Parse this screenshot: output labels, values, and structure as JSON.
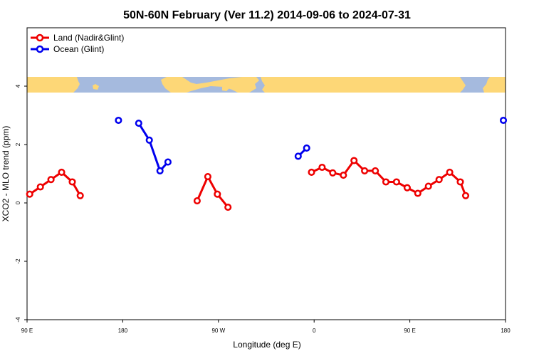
{
  "chart_data": {
    "type": "line",
    "title": "50N-60N February (Ver 11.2)   2014-09-06 to 2024-07-31",
    "xlabel": "Longitude (deg E)",
    "ylabel": "XCO2 - MLO trend (ppm)",
    "x_ticks": [
      {
        "label": "90 E",
        "pos": 90
      },
      {
        "label": "180",
        "pos": 180
      },
      {
        "label": "90 W",
        "pos": 270
      },
      {
        "label": "0",
        "pos": 360
      },
      {
        "label": "90 E",
        "pos": 450
      },
      {
        "label": "180",
        "pos": 540
      }
    ],
    "y_ticks": [
      -4,
      -2,
      0,
      2,
      4
    ],
    "xlim": [
      90,
      540
    ],
    "ylim": [
      -4,
      6
    ],
    "legend_position": "top-left",
    "map_band_y": [
      3.75,
      4.25
    ],
    "colors": {
      "land": "#ee0000",
      "ocean": "#0000ee",
      "map_land": "#fdd777",
      "map_ocean": "#a5bade"
    },
    "series": [
      {
        "name": "Land (Nadir&Glint)",
        "color": "#ee0000",
        "segments": [
          [
            [
              92.5,
              0.3
            ],
            [
              102.5,
              0.55
            ],
            [
              112.5,
              0.8
            ],
            [
              122.5,
              1.05
            ],
            [
              132.5,
              0.72
            ],
            [
              140,
              0.25
            ]
          ],
          [
            [
              250,
              0.07
            ],
            [
              260,
              0.9
            ],
            [
              269,
              0.3
            ],
            [
              279,
              -0.15
            ]
          ],
          [
            [
              357.5,
              1.05
            ],
            [
              367.5,
              1.22
            ],
            [
              377.5,
              1.03
            ],
            [
              387.5,
              0.95
            ],
            [
              397.5,
              1.45
            ],
            [
              407.5,
              1.1
            ],
            [
              417.5,
              1.1
            ],
            [
              427.5,
              0.72
            ],
            [
              437.5,
              0.72
            ],
            [
              447.5,
              0.52
            ],
            [
              457.5,
              0.33
            ],
            [
              467.5,
              0.57
            ],
            [
              477.5,
              0.8
            ],
            [
              487.5,
              1.05
            ],
            [
              497.5,
              0.72
            ],
            [
              502.5,
              0.25
            ]
          ]
        ]
      },
      {
        "name": "Ocean (Glint)",
        "color": "#0000ee",
        "segments": [
          [
            [
              176,
              2.83
            ]
          ],
          [
            [
              195,
              2.73
            ],
            [
              205,
              2.15
            ],
            [
              215,
              1.1
            ],
            [
              222.5,
              1.4
            ]
          ],
          [
            [
              345,
              1.6
            ],
            [
              353,
              1.88
            ]
          ],
          [
            [
              538,
              2.83
            ]
          ]
        ]
      }
    ]
  }
}
